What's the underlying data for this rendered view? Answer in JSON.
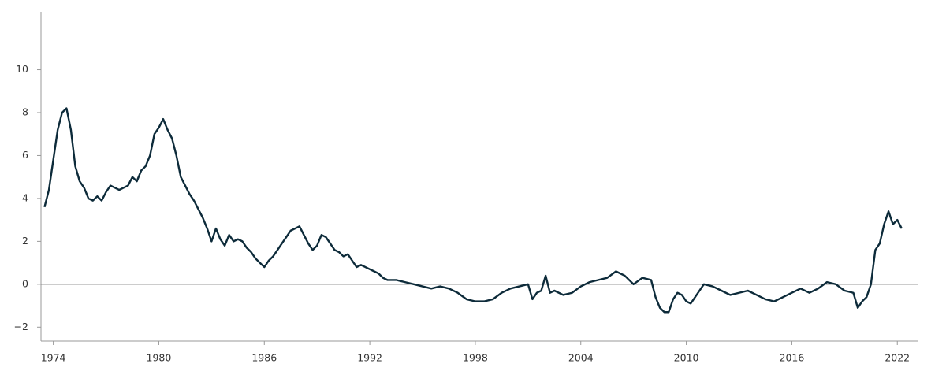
{
  "chart_data": {
    "type": "line",
    "x": [
      1973.5,
      1973.75,
      1974.0,
      1974.25,
      1974.5,
      1974.75,
      1975.0,
      1975.25,
      1975.5,
      1975.75,
      1976.0,
      1976.25,
      1976.5,
      1976.75,
      1977.0,
      1977.25,
      1977.5,
      1977.75,
      1978.0,
      1978.25,
      1978.5,
      1978.75,
      1979.0,
      1979.25,
      1979.5,
      1979.75,
      1980.0,
      1980.25,
      1980.5,
      1980.75,
      1981.0,
      1981.25,
      1981.5,
      1981.75,
      1982.0,
      1982.25,
      1982.5,
      1982.75,
      1983.0,
      1983.25,
      1983.5,
      1983.75,
      1984.0,
      1984.25,
      1984.5,
      1984.75,
      1985.0,
      1985.25,
      1985.5,
      1985.75,
      1986.0,
      1986.25,
      1986.5,
      1986.75,
      1987.0,
      1987.25,
      1987.5,
      1987.75,
      1988.0,
      1988.25,
      1988.5,
      1988.75,
      1989.0,
      1989.25,
      1989.5,
      1989.75,
      1990.0,
      1990.25,
      1990.5,
      1990.75,
      1991.0,
      1991.25,
      1991.5,
      1991.75,
      1992.0,
      1992.25,
      1992.5,
      1992.75,
      1993.0,
      1993.5,
      1994.0,
      1994.5,
      1995.0,
      1995.5,
      1996.0,
      1996.5,
      1997.0,
      1997.5,
      1998.0,
      1998.5,
      1999.0,
      1999.5,
      2000.0,
      2000.5,
      2001.0,
      2001.25,
      2001.5,
      2001.75,
      2002.0,
      2002.25,
      2002.5,
      2003.0,
      2003.5,
      2004.0,
      2004.5,
      2005.0,
      2005.5,
      2006.0,
      2006.5,
      2007.0,
      2007.5,
      2008.0,
      2008.25,
      2008.5,
      2008.75,
      2009.0,
      2009.25,
      2009.5,
      2009.75,
      2010.0,
      2010.25,
      2010.5,
      2010.75,
      2011.0,
      2011.5,
      2012.0,
      2012.5,
      2013.0,
      2013.5,
      2014.0,
      2014.5,
      2015.0,
      2015.5,
      2016.0,
      2016.5,
      2017.0,
      2017.5,
      2018.0,
      2018.5,
      2019.0,
      2019.5,
      2019.75,
      2020.0,
      2020.25,
      2020.5,
      2020.75,
      2021.0,
      2021.25,
      2021.5,
      2021.75,
      2022.0,
      2022.25
    ],
    "series": [
      {
        "color": "#0d2b3a",
        "values": [
          3.6,
          4.4,
          5.8,
          7.2,
          8.0,
          8.2,
          7.2,
          5.5,
          4.8,
          4.5,
          4.0,
          3.9,
          4.1,
          3.9,
          4.3,
          4.6,
          4.5,
          4.4,
          4.5,
          4.6,
          5.0,
          4.8,
          5.3,
          5.5,
          6.0,
          7.0,
          7.3,
          7.7,
          7.2,
          6.8,
          6.0,
          5.0,
          4.6,
          4.2,
          3.9,
          3.5,
          3.1,
          2.6,
          2.0,
          2.6,
          2.1,
          1.8,
          2.3,
          2.0,
          2.1,
          2.0,
          1.7,
          1.5,
          1.2,
          1.0,
          0.8,
          1.1,
          1.3,
          1.6,
          1.9,
          2.2,
          2.5,
          2.6,
          2.7,
          2.3,
          1.9,
          1.6,
          1.8,
          2.3,
          2.2,
          1.9,
          1.6,
          1.5,
          1.3,
          1.4,
          1.1,
          0.8,
          0.9,
          0.8,
          0.7,
          0.6,
          0.5,
          0.3,
          0.2,
          0.2,
          0.1,
          0.0,
          -0.1,
          -0.2,
          -0.1,
          -0.2,
          -0.4,
          -0.7,
          -0.8,
          -0.8,
          -0.7,
          -0.4,
          -0.2,
          -0.1,
          0.0,
          -0.7,
          -0.4,
          -0.3,
          0.4,
          -0.4,
          -0.3,
          -0.5,
          -0.4,
          -0.1,
          0.1,
          0.2,
          0.3,
          0.6,
          0.4,
          0.0,
          0.3,
          0.2,
          -0.6,
          -1.1,
          -1.3,
          -1.3,
          -0.7,
          -0.4,
          -0.5,
          -0.8,
          -0.9,
          -0.6,
          -0.3,
          0.0,
          -0.1,
          -0.3,
          -0.5,
          -0.4,
          -0.3,
          -0.5,
          -0.7,
          -0.8,
          -0.6,
          -0.4,
          -0.2,
          -0.4,
          -0.2,
          0.1,
          0.0,
          -0.3,
          -0.4,
          -1.1,
          -0.8,
          -0.6,
          0.0,
          1.6,
          1.9,
          2.8,
          3.4,
          2.8,
          3.0,
          2.6
        ]
      }
    ],
    "xlim": [
      1973.3,
      2023.2
    ],
    "xticks": [
      1974,
      1980,
      1986,
      1992,
      1998,
      2004,
      2010,
      2016,
      2022
    ],
    "ylim": [
      -2.65,
      12.7
    ],
    "yticks": [
      {
        "value": -2,
        "label": "−2"
      },
      0,
      2,
      4,
      6,
      8,
      10
    ],
    "grid": false
  }
}
